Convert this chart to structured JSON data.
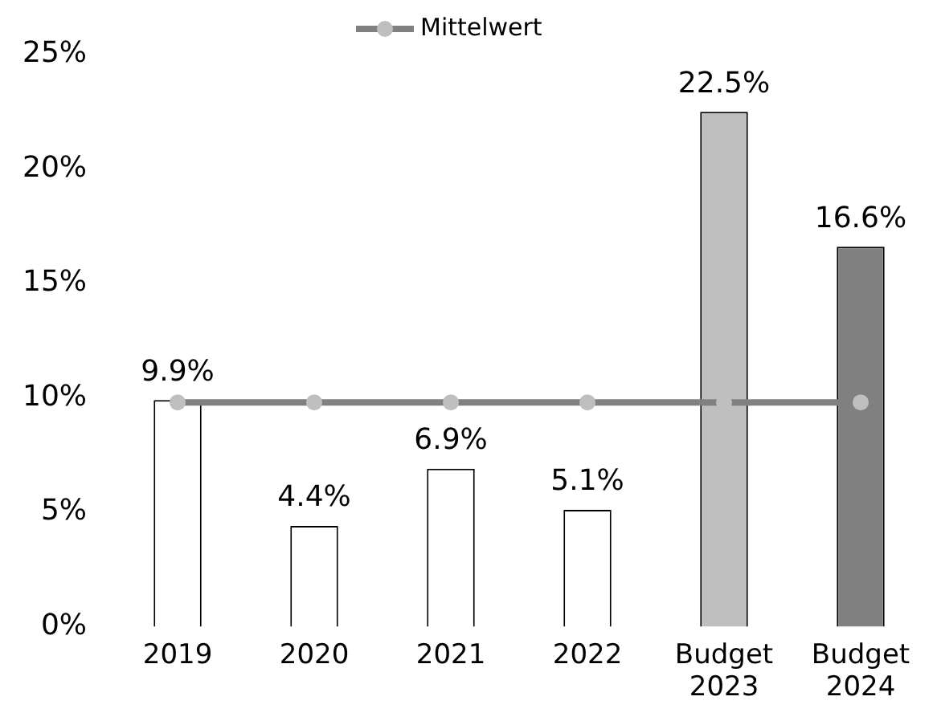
{
  "chart_data": {
    "type": "bar",
    "categories": [
      "2019",
      "2020",
      "2021",
      "2022",
      "Budget 2023",
      "Budget 2024"
    ],
    "series": [
      {
        "colors": [
          "#ffffff",
          "#ffffff",
          "#ffffff",
          "#ffffff",
          "#bfbfbf",
          "#808080"
        ],
        "values": [
          9.9,
          4.4,
          6.9,
          5.1,
          22.5,
          16.6
        ],
        "value_labels": [
          "9.9%",
          "4.4%",
          "6.9%",
          "5.1%",
          "22.5%",
          "16.6%"
        ]
      },
      {
        "type": "line",
        "name": "Mittelwert",
        "color": "#808080",
        "values": [
          9.8,
          9.8,
          9.8,
          9.8,
          9.8,
          9.8
        ]
      }
    ],
    "ylim": [
      0,
      25
    ],
    "yticks": [
      {
        "value": 0,
        "label": "0%"
      },
      {
        "value": 5,
        "label": "5%"
      },
      {
        "value": 10,
        "label": "10%"
      },
      {
        "value": 15,
        "label": "15%"
      },
      {
        "value": 20,
        "label": "20%"
      },
      {
        "value": 25,
        "label": "25%"
      }
    ],
    "grid": false,
    "legend": "top",
    "marker": "circle",
    "line_style": "solid"
  }
}
